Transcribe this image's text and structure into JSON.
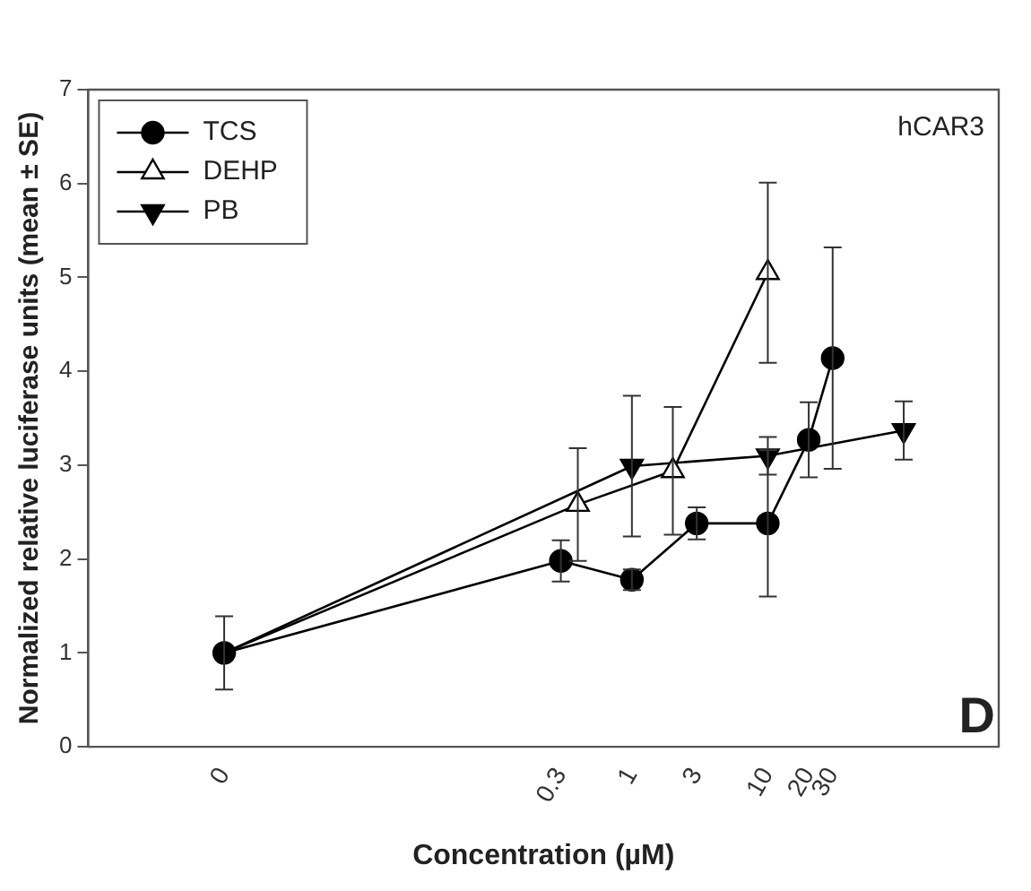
{
  "chart_data": {
    "type": "line",
    "xlabel": "Concentration (µM)",
    "ylabel": "Normalized relative luciferase units (mean ± SE)",
    "log": "x",
    "xlim": [
      0.0001,
      500
    ],
    "xticks": [
      {
        "value": 0.001,
        "label": "0"
      },
      0.3,
      1,
      3,
      10,
      20,
      30
    ],
    "ylim": [
      0,
      7
    ],
    "yticks": [
      0,
      1,
      2,
      3,
      4,
      5,
      6,
      7
    ],
    "grid": false,
    "legend": "top left",
    "line_style": "solid",
    "annotations": [
      "hCAR3",
      "D"
    ],
    "series": [
      {
        "name": "TCS",
        "color": "#000000",
        "marker": "circle",
        "x": [
          0.001,
          0.3,
          1,
          3,
          10,
          20,
          30
        ],
        "values": [
          1.0,
          1.98,
          1.78,
          2.38,
          2.38,
          3.27,
          4.14
        ],
        "errors": [
          0.39,
          0.22,
          0.11,
          0.17,
          0.78,
          0.4,
          1.18
        ]
      },
      {
        "name": "DEHP",
        "color": "#000000",
        "marker": "triangle",
        "x": [
          0.001,
          0.4,
          2,
          10
        ],
        "values": [
          1.0,
          2.58,
          2.94,
          5.05
        ],
        "errors": [
          null,
          0.6,
          0.68,
          0.96
        ]
      },
      {
        "name": "PB",
        "color": "#000000",
        "marker": "triangle",
        "x": [
          0.001,
          1,
          10,
          100
        ],
        "values": [
          1.0,
          2.99,
          3.1,
          3.37
        ],
        "errors": [
          null,
          0.75,
          0.2,
          0.31
        ]
      }
    ]
  }
}
